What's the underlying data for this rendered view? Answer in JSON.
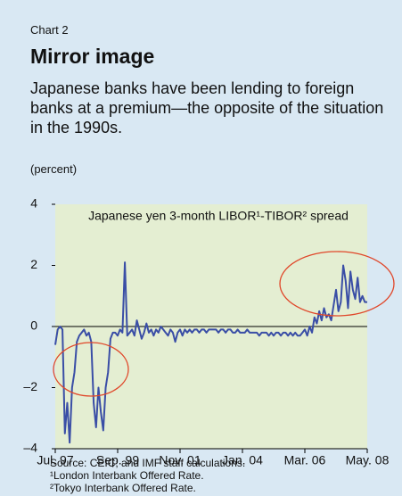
{
  "chart_data": {
    "type": "line",
    "label": "Chart 2",
    "title": "Mirror image",
    "subtitle": "Japanese banks have been lending to foreign banks at a premium—the opposite of the situation in the 1990s.",
    "y_axis_label": "(percent)",
    "notes": [
      "Source: CEIC; and IMF staff calculations.",
      "¹London Interbank Offered Rate.",
      "²Tokyo Interbank Offered Rate."
    ],
    "xlim": [
      "1997-07",
      "2008-05"
    ],
    "xticks": [
      {
        "value": "1997-07",
        "label": "Jul. 97"
      },
      {
        "value": "1999-09",
        "label": "Sep. 99"
      },
      {
        "value": "2001-11",
        "label": "Nov. 01"
      },
      {
        "value": "2004-01",
        "label": "Jan. 04"
      },
      {
        "value": "2006-03",
        "label": "Mar. 06"
      },
      {
        "value": "2008-05",
        "label": "May. 08"
      }
    ],
    "ylim": [
      -4,
      4
    ],
    "yticks": [
      -4,
      -2,
      0,
      2,
      4
    ],
    "ytick_labels": [
      "–4",
      "–2",
      "0",
      "2",
      "4"
    ],
    "x": [
      "1997-07",
      "1997-08",
      "1997-09",
      "1997-10",
      "1997-11",
      "1997-12",
      "1998-01",
      "1998-02",
      "1998-03",
      "1998-04",
      "1998-05",
      "1998-06",
      "1998-07",
      "1998-08",
      "1998-09",
      "1998-10",
      "1998-11",
      "1998-12",
      "1999-01",
      "1999-02",
      "1999-03",
      "1999-04",
      "1999-05",
      "1999-06",
      "1999-07",
      "1999-08",
      "1999-09",
      "1999-10",
      "1999-11",
      "1999-12",
      "2000-01",
      "2000-02",
      "2000-03",
      "2000-04",
      "2000-05",
      "2000-06",
      "2000-07",
      "2000-08",
      "2000-09",
      "2000-10",
      "2000-11",
      "2000-12",
      "2001-01",
      "2001-02",
      "2001-03",
      "2001-04",
      "2001-05",
      "2001-06",
      "2001-07",
      "2001-08",
      "2001-09",
      "2001-10",
      "2001-11",
      "2001-12",
      "2002-01",
      "2002-02",
      "2002-03",
      "2002-04",
      "2002-05",
      "2002-06",
      "2002-07",
      "2002-08",
      "2002-09",
      "2002-10",
      "2002-11",
      "2002-12",
      "2003-01",
      "2003-02",
      "2003-03",
      "2003-04",
      "2003-05",
      "2003-06",
      "2003-07",
      "2003-08",
      "2003-09",
      "2003-10",
      "2003-11",
      "2003-12",
      "2004-01",
      "2004-02",
      "2004-03",
      "2004-04",
      "2004-05",
      "2004-06",
      "2004-07",
      "2004-08",
      "2004-09",
      "2004-10",
      "2004-11",
      "2004-12",
      "2005-01",
      "2005-02",
      "2005-03",
      "2005-04",
      "2005-05",
      "2005-06",
      "2005-07",
      "2005-08",
      "2005-09",
      "2005-10",
      "2005-11",
      "2005-12",
      "2006-01",
      "2006-02",
      "2006-03",
      "2006-04",
      "2006-05",
      "2006-06",
      "2006-07",
      "2006-08",
      "2006-09",
      "2006-10",
      "2006-11",
      "2006-12",
      "2007-01",
      "2007-02",
      "2007-03",
      "2007-04",
      "2007-05",
      "2007-06",
      "2007-07",
      "2007-08",
      "2007-09",
      "2007-10",
      "2007-11",
      "2007-12",
      "2008-01",
      "2008-02",
      "2008-03",
      "2008-04",
      "2008-05"
    ],
    "series": [
      {
        "name": "Japanese yen 3-month LIBOR¹-TIBOR² spread",
        "color": "#3a4ea6",
        "values": [
          -0.6,
          -0.1,
          0.0,
          -0.1,
          -3.5,
          -2.5,
          -3.8,
          -2.0,
          -1.5,
          -0.5,
          -0.3,
          -0.2,
          -0.1,
          -0.3,
          -0.2,
          -0.5,
          -2.5,
          -3.3,
          -2.0,
          -2.8,
          -3.4,
          -2.0,
          -1.5,
          -0.4,
          -0.2,
          -0.2,
          -0.3,
          -0.1,
          -0.2,
          2.1,
          -0.3,
          -0.2,
          -0.1,
          -0.3,
          0.2,
          -0.1,
          -0.4,
          -0.2,
          0.1,
          -0.2,
          -0.1,
          -0.3,
          -0.1,
          -0.2,
          0.0,
          -0.1,
          -0.2,
          -0.3,
          -0.1,
          -0.2,
          -0.5,
          -0.2,
          -0.1,
          -0.3,
          -0.1,
          -0.2,
          -0.1,
          -0.2,
          -0.1,
          -0.1,
          -0.2,
          -0.1,
          -0.1,
          -0.2,
          -0.1,
          -0.1,
          -0.1,
          -0.1,
          -0.2,
          -0.1,
          -0.1,
          -0.2,
          -0.1,
          -0.1,
          -0.2,
          -0.2,
          -0.1,
          -0.2,
          -0.2,
          -0.2,
          -0.1,
          -0.2,
          -0.2,
          -0.2,
          -0.2,
          -0.3,
          -0.2,
          -0.2,
          -0.2,
          -0.3,
          -0.2,
          -0.3,
          -0.2,
          -0.2,
          -0.3,
          -0.2,
          -0.2,
          -0.3,
          -0.2,
          -0.3,
          -0.2,
          -0.3,
          -0.3,
          -0.2,
          -0.1,
          -0.3,
          0.0,
          -0.2,
          0.3,
          0.1,
          0.5,
          0.2,
          0.6,
          0.3,
          0.4,
          0.2,
          0.7,
          1.2,
          0.5,
          0.8,
          2.0,
          1.5,
          0.6,
          1.8,
          1.2,
          0.9,
          1.6,
          0.8,
          1.0,
          0.8,
          0.8
        ]
      }
    ],
    "grid": false,
    "plot_background": "#e4eed2"
  }
}
